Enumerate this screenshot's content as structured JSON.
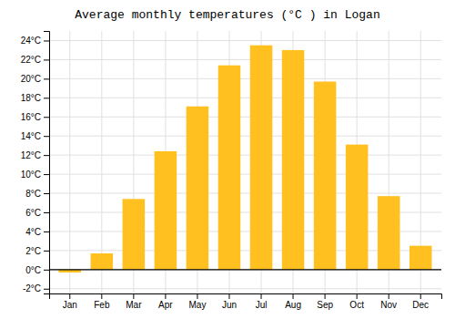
{
  "chart_data": {
    "type": "bar",
    "title": "Average monthly temperatures (°C ) in Logan",
    "categories": [
      "Jan",
      "Feb",
      "Mar",
      "Apr",
      "May",
      "Jun",
      "Jul",
      "Aug",
      "Sep",
      "Oct",
      "Nov",
      "Dec"
    ],
    "values": [
      -0.3,
      1.7,
      7.4,
      12.4,
      17.1,
      21.4,
      23.5,
      23.0,
      19.7,
      13.1,
      7.7,
      2.5
    ],
    "color": "#FFC020",
    "ylim": [
      -2.5,
      25
    ],
    "yticks": [
      {
        "value": -2,
        "label": "-2°C"
      },
      {
        "value": 0,
        "label": "0°C"
      },
      {
        "value": 2,
        "label": "2°C"
      },
      {
        "value": 4,
        "label": "4°C"
      },
      {
        "value": 6,
        "label": "6°C"
      },
      {
        "value": 8,
        "label": "8°C"
      },
      {
        "value": 10,
        "label": "10°C"
      },
      {
        "value": 12,
        "label": "12°C"
      },
      {
        "value": 14,
        "label": "14°C"
      },
      {
        "value": 16,
        "label": "16°C"
      },
      {
        "value": 18,
        "label": "18°C"
      },
      {
        "value": 20,
        "label": "20°C"
      },
      {
        "value": 22,
        "label": "22°C"
      },
      {
        "value": 24,
        "label": "24°C"
      }
    ],
    "grid": true
  }
}
